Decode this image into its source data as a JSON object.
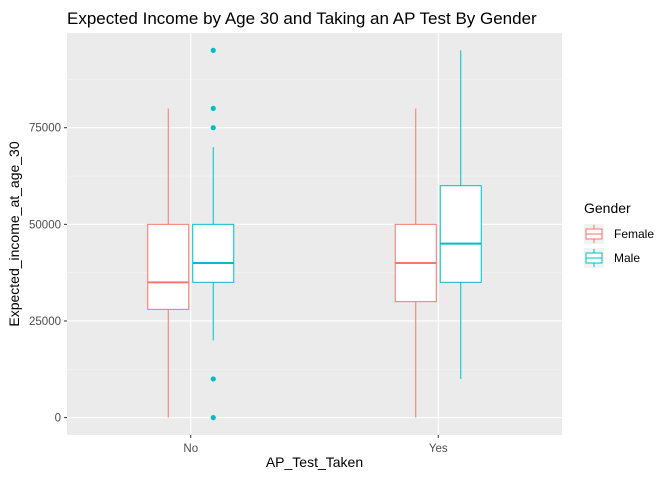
{
  "chart_data": {
    "type": "boxplot",
    "title": "Expected Income by Age 30 and Taking an AP Test By Gender",
    "xlabel": "AP_Test_Taken",
    "ylabel": "Expected_income_at_age_30",
    "categories": [
      "No",
      "Yes"
    ],
    "ylim": [
      -4500,
      99500
    ],
    "y_ticks": [
      0,
      25000,
      50000,
      75000
    ],
    "y_tick_labels": [
      "0",
      "25000",
      "50000",
      "75000"
    ],
    "grid": true,
    "legend": {
      "title": "Gender",
      "position": "right",
      "entries": [
        "Female",
        "Male"
      ]
    },
    "series": [
      {
        "name": "Female",
        "color": "#F8766D",
        "boxes": [
          {
            "category": "No",
            "min": 0,
            "q1": 28000,
            "median": 35000,
            "q3": 50000,
            "max": 80000,
            "outliers": []
          },
          {
            "category": "Yes",
            "min": 0,
            "q1": 30000,
            "median": 40000,
            "q3": 50000,
            "max": 80000,
            "outliers": []
          }
        ]
      },
      {
        "name": "Male",
        "color": "#00BFC4",
        "boxes": [
          {
            "category": "No",
            "min": 20000,
            "q1": 35000,
            "median": 40000,
            "q3": 50000,
            "max": 70000,
            "outliers": [
              0,
              10000,
              75000,
              80000,
              95000
            ]
          },
          {
            "category": "Yes",
            "min": 10000,
            "q1": 35000,
            "median": 45000,
            "q3": 60000,
            "max": 95000,
            "outliers": []
          }
        ]
      }
    ]
  }
}
